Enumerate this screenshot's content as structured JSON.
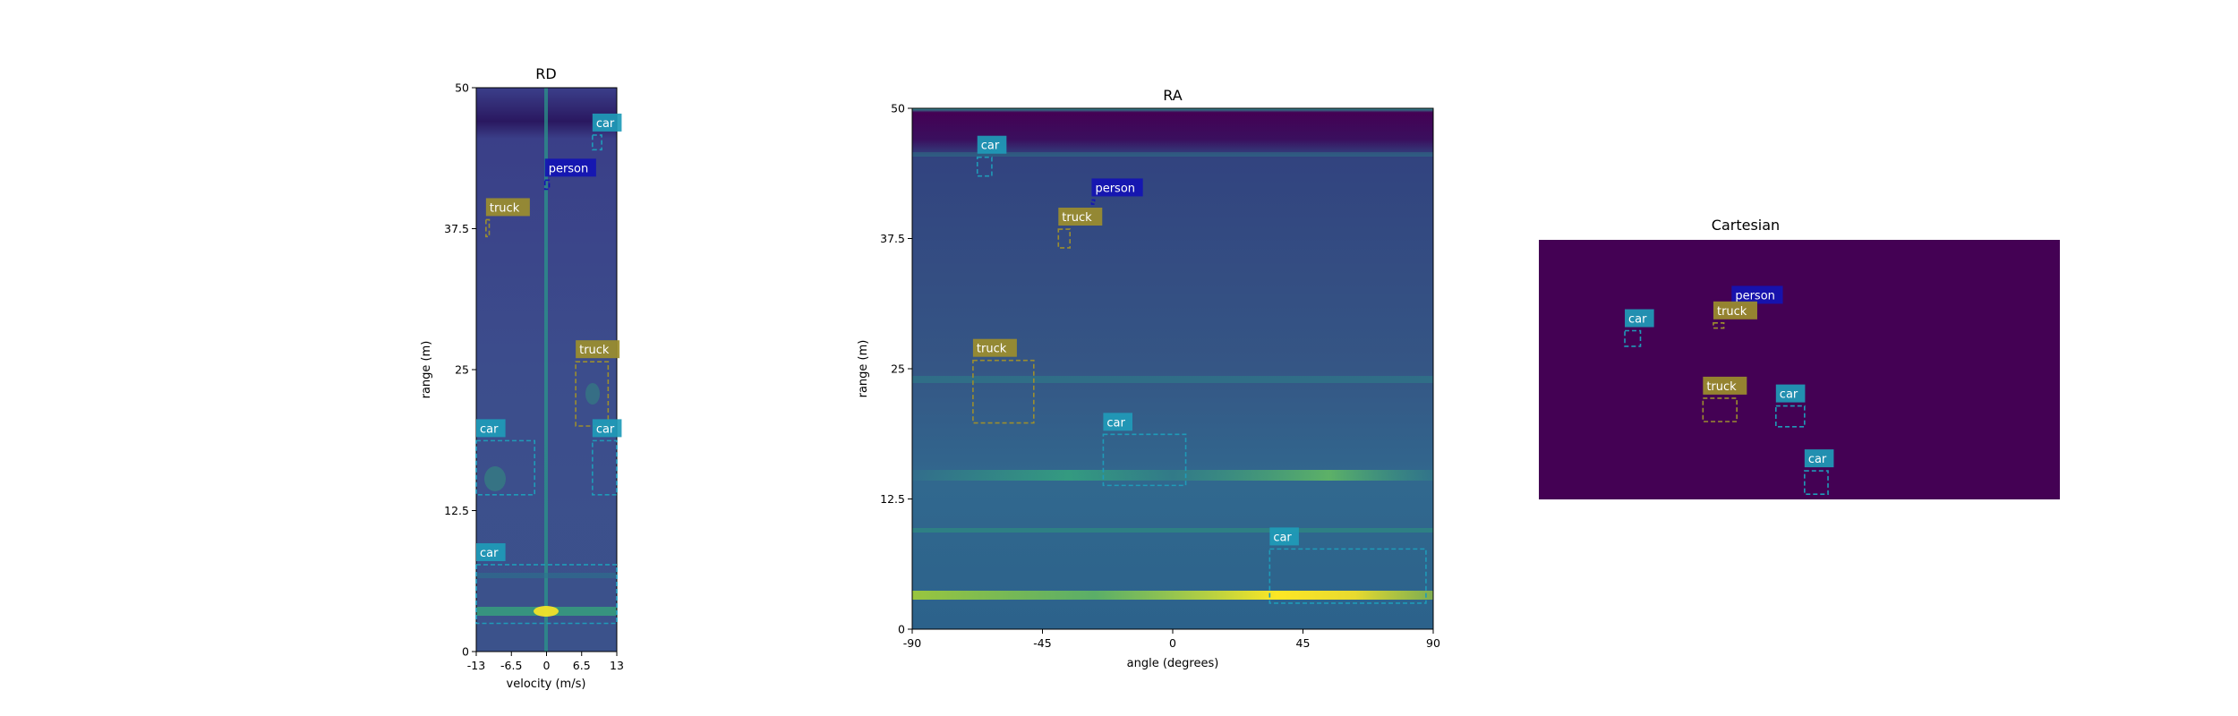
{
  "colors": {
    "car": "#1f9bb8",
    "person": "#1414b4",
    "truck": "#9c8e2e",
    "background_dark": "#3a2a6b",
    "cartesian_bg": "#440154"
  },
  "chart_data": [
    {
      "type": "heatmap",
      "title": "RD",
      "xlabel": "velocity (m/s)",
      "ylabel": "range (m)",
      "xlim": [
        -13,
        13
      ],
      "ylim": [
        0,
        50
      ],
      "xticks": [
        "-13",
        "-6.5",
        "0",
        "6.5",
        "13"
      ],
      "xtick_values": [
        -13,
        -6.5,
        0,
        6.5,
        13
      ],
      "yticks": [
        "0",
        "12.5",
        "25",
        "37.5",
        "50"
      ],
      "ytick_values": [
        0,
        12.5,
        25,
        37.5,
        50
      ],
      "boxes": [
        {
          "label": "car",
          "x0": 8.5,
          "x1": 10.2,
          "y0": 44.5,
          "y1": 45.8
        },
        {
          "label": "person",
          "x0": -0.3,
          "x1": 0.5,
          "y0": 41.0,
          "y1": 41.8
        },
        {
          "label": "truck",
          "x0": -11.2,
          "x1": -10.6,
          "y0": 36.8,
          "y1": 38.3
        },
        {
          "label": "truck",
          "x0": 5.4,
          "x1": 11.4,
          "y0": 20.0,
          "y1": 25.7
        },
        {
          "label": "car",
          "x0": 8.5,
          "x1": 13.0,
          "y0": 13.9,
          "y1": 18.7
        },
        {
          "label": "car",
          "x0": -13.0,
          "x1": -2.2,
          "y0": 13.9,
          "y1": 18.7
        },
        {
          "label": "car",
          "x0": -13.0,
          "x1": 13.0,
          "y0": 2.5,
          "y1": 7.7
        }
      ]
    },
    {
      "type": "heatmap",
      "title": "RA",
      "xlabel": "angle (degrees)",
      "ylabel": "range (m)",
      "xlim": [
        -90,
        90
      ],
      "ylim": [
        0,
        50
      ],
      "xticks": [
        "-90",
        "-45",
        "0",
        "45",
        "90"
      ],
      "xtick_values": [
        -90,
        -45,
        0,
        45,
        90
      ],
      "yticks": [
        "0",
        "12.5",
        "25",
        "37.5",
        "50"
      ],
      "ytick_values": [
        0,
        12.5,
        25,
        37.5,
        50
      ],
      "boxes": [
        {
          "label": "car",
          "x0": -67.5,
          "x1": -62.5,
          "y0": 43.5,
          "y1": 45.3
        },
        {
          "label": "person",
          "x0": -28,
          "x1": -27,
          "y0": 40.8,
          "y1": 41.2
        },
        {
          "label": "truck",
          "x0": -39.5,
          "x1": -35.5,
          "y0": 36.6,
          "y1": 38.4
        },
        {
          "label": "truck",
          "x0": -69,
          "x1": -48,
          "y0": 19.8,
          "y1": 25.8
        },
        {
          "label": "car",
          "x0": -24,
          "x1": 4.5,
          "y0": 13.8,
          "y1": 18.7
        },
        {
          "label": "car",
          "x0": 33.5,
          "x1": 87.5,
          "y0": 2.5,
          "y1": 7.7
        }
      ]
    },
    {
      "type": "heatmap",
      "title": "Cartesian",
      "boxes": [
        {
          "label": "person",
          "x0": 0.37,
          "x1": 0.38,
          "y0": 0.26,
          "y1": 0.27
        },
        {
          "label": "car",
          "x0": 0.165,
          "x1": 0.195,
          "y0": 0.35,
          "y1": 0.41
        },
        {
          "label": "truck",
          "x0": 0.335,
          "x1": 0.355,
          "y0": 0.32,
          "y1": 0.34
        },
        {
          "label": "truck",
          "x0": 0.315,
          "x1": 0.38,
          "y0": 0.61,
          "y1": 0.7
        },
        {
          "label": "car",
          "x0": 0.455,
          "x1": 0.51,
          "y0": 0.64,
          "y1": 0.72
        },
        {
          "label": "car",
          "x0": 0.51,
          "x1": 0.555,
          "y0": 0.89,
          "y1": 0.98
        }
      ]
    }
  ]
}
